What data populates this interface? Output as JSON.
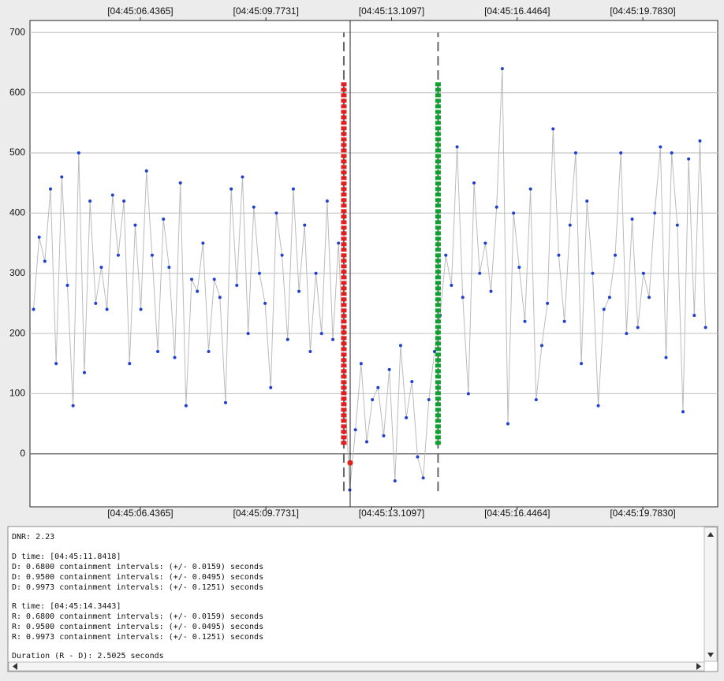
{
  "chart_data": {
    "type": "line",
    "xlim": [
      3.505,
      21.772
    ],
    "ylim": [
      -88,
      720
    ],
    "xticks": [
      {
        "value": 6.4365,
        "label": "[04:45:06.4365]"
      },
      {
        "value": 9.7731,
        "label": "[04:45:09.7731]"
      },
      {
        "value": 13.1097,
        "label": "[04:45:13.1097]"
      },
      {
        "value": 16.4464,
        "label": "[04:45:16.4464]"
      },
      {
        "value": 19.783,
        "label": "[04:45:19.7830]"
      }
    ],
    "yticks": [
      0,
      100,
      200,
      300,
      400,
      500,
      600,
      700
    ],
    "grid": true,
    "color": "#1f3fd0",
    "line_color": "#bbbbbb",
    "x": [
      3.6,
      3.75,
      3.9,
      4.05,
      4.2,
      4.35,
      4.5,
      4.65,
      4.8,
      4.95,
      5.1,
      5.25,
      5.4,
      5.55,
      5.7,
      5.85,
      6,
      6.15,
      6.3,
      6.45,
      6.6,
      6.75,
      6.9,
      7.05,
      7.2,
      7.35,
      7.5,
      7.65,
      7.8,
      7.95,
      8.1,
      8.25,
      8.4,
      8.55,
      8.7,
      8.85,
      9,
      9.15,
      9.3,
      9.45,
      9.6,
      9.75,
      9.9,
      10.05,
      10.2,
      10.35,
      10.5,
      10.65,
      10.8,
      10.95,
      11.1,
      11.25,
      11.4,
      11.55,
      11.7,
      11.85,
      12,
      12.15,
      12.3,
      12.45,
      12.6,
      12.75,
      12.9,
      13.05,
      13.2,
      13.35,
      13.5,
      13.65,
      13.8,
      13.95,
      14.1,
      14.25,
      14.4,
      14.55,
      14.7,
      14.85,
      15,
      15.15,
      15.3,
      15.45,
      15.6,
      15.75,
      15.9,
      16.05,
      16.2,
      16.35,
      16.5,
      16.65,
      16.8,
      16.95,
      17.1,
      17.25,
      17.4,
      17.55,
      17.7,
      17.85,
      18,
      18.15,
      18.3,
      18.45,
      18.6,
      18.75,
      18.9,
      19.05,
      19.2,
      19.35,
      19.5,
      19.65,
      19.8,
      19.95,
      20.1,
      20.25,
      20.4,
      20.55,
      20.7,
      20.85,
      21,
      21.15,
      21.3,
      21.45
    ],
    "values": [
      240,
      360,
      320,
      440,
      150,
      460,
      280,
      80,
      500,
      135,
      420,
      250,
      310,
      240,
      430,
      330,
      420,
      150,
      380,
      240,
      470,
      330,
      170,
      390,
      310,
      160,
      450,
      80,
      290,
      270,
      350,
      170,
      290,
      260,
      85,
      440,
      280,
      460,
      200,
      410,
      300,
      250,
      110,
      400,
      330,
      190,
      440,
      270,
      380,
      170,
      300,
      200,
      420,
      190,
      350,
      130,
      -60,
      40,
      150,
      20,
      90,
      110,
      30,
      140,
      -45,
      180,
      60,
      120,
      -5,
      -40,
      90,
      170,
      230,
      330,
      280,
      510,
      260,
      100,
      450,
      300,
      350,
      270,
      410,
      640,
      50,
      400,
      310,
      220,
      440,
      90,
      180,
      250,
      540,
      330,
      220,
      380,
      500,
      150,
      420,
      300,
      80,
      240,
      260,
      330,
      500,
      200,
      390,
      210,
      300,
      260,
      400,
      510,
      160,
      500,
      380,
      70,
      490,
      230,
      520,
      210
    ],
    "guide_range": [
      -62,
      700
    ],
    "d_marker": {
      "x": 11.8418,
      "low": 15,
      "high": 620,
      "color": "#e02020"
    },
    "r_marker": {
      "x": 14.3443,
      "low": 15,
      "high": 620,
      "color": "#10a030"
    },
    "cursor": {
      "x": 12.01,
      "y": -15,
      "color": "#e02020"
    }
  },
  "panel": {
    "lines": [
      "DNR: 2.23",
      "D time: [04:45:11.8418]",
      "D: 0.6800 containment intervals: (+/- 0.0159) seconds",
      "D: 0.9500 containment intervals: (+/- 0.0495) seconds",
      "D: 0.9973 containment intervals: (+/- 0.1251) seconds",
      "R time: [04:45:14.3443]",
      "R: 0.6800 containment intervals: (+/- 0.0159) seconds",
      "R: 0.9500 containment intervals: (+/- 0.0495) seconds",
      "R: 0.9973 containment intervals: (+/- 0.1251) seconds",
      "Duration (R - D): 2.5025 seconds"
    ]
  }
}
